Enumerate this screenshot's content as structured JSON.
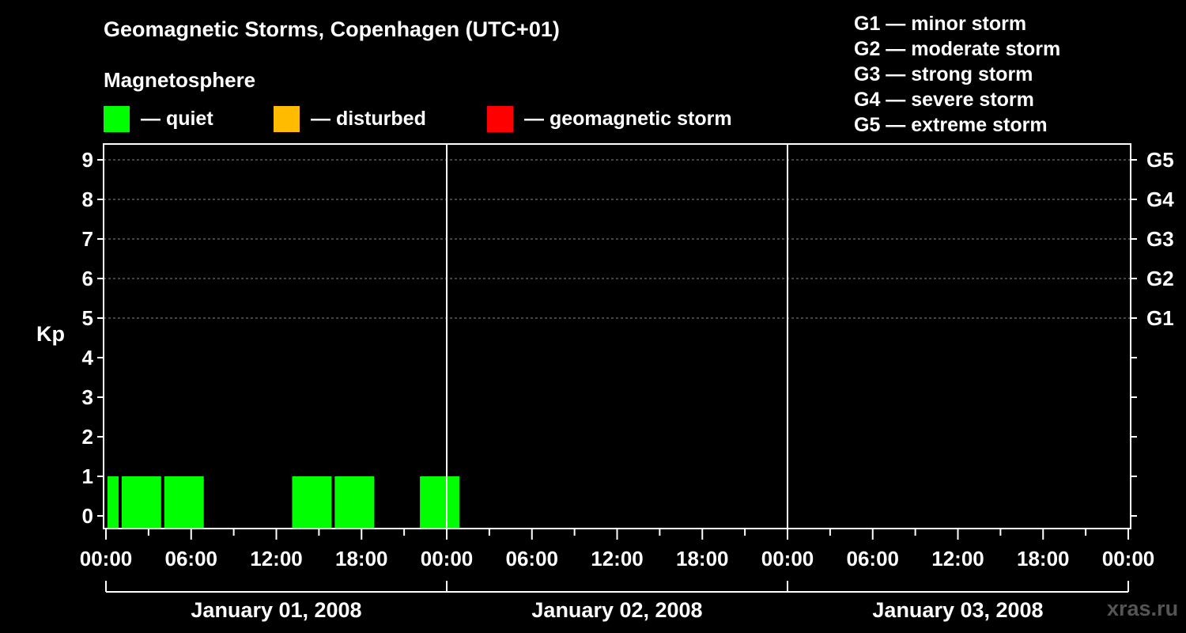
{
  "header": {
    "title": "Geomagnetic Storms, Copenhagen (UTC+01)",
    "subtitle": "Magnetosphere"
  },
  "legend": [
    {
      "label": "— quiet",
      "color": "#00ff00"
    },
    {
      "label": "— disturbed",
      "color": "#ffbb00"
    },
    {
      "label": "— geomagnetic storm",
      "color": "#ff0000"
    }
  ],
  "scale": [
    "G1 — minor storm",
    "G2 — moderate storm",
    "G3 — strong storm",
    "G4 — severe storm",
    "G5 — extreme storm"
  ],
  "watermark": "xras.ru",
  "chart_data": {
    "type": "bar",
    "ylabel": "Kp",
    "ylim": [
      0,
      9
    ],
    "y_ticks": [
      "0",
      "1",
      "2",
      "3",
      "4",
      "5",
      "6",
      "7",
      "8",
      "9"
    ],
    "g_levels": [
      {
        "label": "G1",
        "kp": 5
      },
      {
        "label": "G2",
        "kp": 6
      },
      {
        "label": "G3",
        "kp": 7
      },
      {
        "label": "G4",
        "kp": 8
      },
      {
        "label": "G5",
        "kp": 9
      }
    ],
    "x_range_hours": [
      0,
      72
    ],
    "x_tick_labels": [
      "00:00",
      "06:00",
      "12:00",
      "18:00",
      "00:00",
      "06:00",
      "12:00",
      "18:00",
      "00:00",
      "06:00",
      "12:00",
      "18:00",
      "00:00"
    ],
    "days": [
      "January 01, 2008",
      "January 02, 2008",
      "January 03, 2008"
    ],
    "series": [
      {
        "name": "Kp index",
        "bars": [
          {
            "start_hour": 0,
            "end_hour": 1,
            "kp": 1,
            "level": "quiet"
          },
          {
            "start_hour": 1,
            "end_hour": 4,
            "kp": 1,
            "level": "quiet"
          },
          {
            "start_hour": 4,
            "end_hour": 7,
            "kp": 1,
            "level": "quiet"
          },
          {
            "start_hour": 13,
            "end_hour": 16,
            "kp": 1,
            "level": "quiet"
          },
          {
            "start_hour": 16,
            "end_hour": 19,
            "kp": 1,
            "level": "quiet"
          },
          {
            "start_hour": 22,
            "end_hour": 25,
            "kp": 1,
            "level": "quiet"
          }
        ]
      }
    ]
  }
}
